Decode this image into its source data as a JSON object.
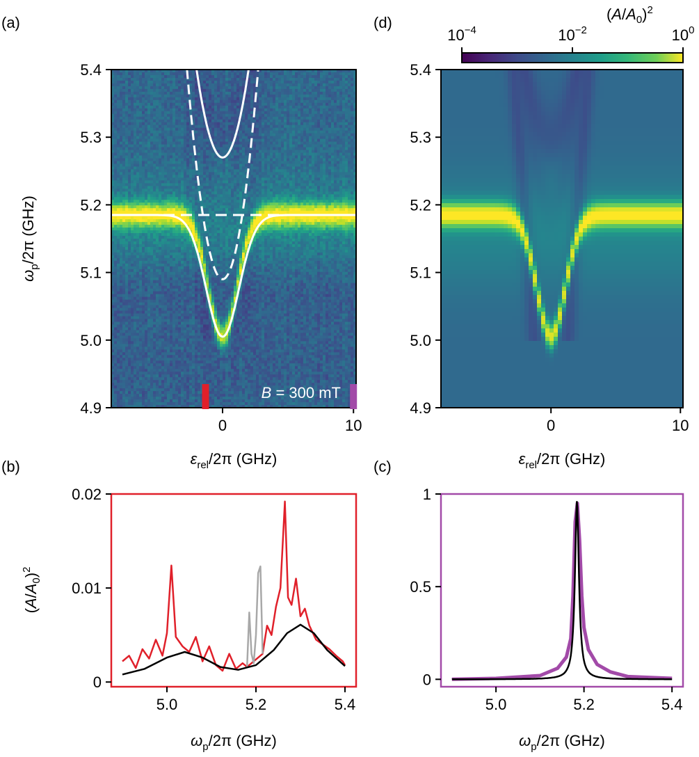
{
  "colors": {
    "panel_b_frame": "#e0202a",
    "panel_c_frame": "#a24aa8",
    "fit_line": "#000000",
    "excluded_data": "#a8a8a8",
    "overlay_lines": "#ffffff",
    "colormap": "viridis"
  },
  "chart_data": [
    {
      "panel": "(a)",
      "type": "heatmap",
      "title": "",
      "xlabel_parts": [
        "ε",
        "rel",
        "/2π (GHz)"
      ],
      "ylabel_parts": [
        "ω",
        "p",
        "/2π (GHz)"
      ],
      "xlim": [
        -8.5,
        10.2
      ],
      "ylim": [
        4.9,
        5.4
      ],
      "x_ticks": [
        0,
        10
      ],
      "y_ticks": [
        4.9,
        5.0,
        5.1,
        5.2,
        5.3,
        5.4
      ],
      "annotation": {
        "symbol": "B",
        "text": " = 300 mT"
      },
      "markers": [
        {
          "x": -1.3,
          "color": "#e0202a"
        },
        {
          "x": 10.0,
          "color": "#a24aa8"
        }
      ],
      "resonator_frequency": 5.185,
      "overlay_lines": [
        {
          "style": "solid",
          "shape": "dip",
          "min_y": 5.005,
          "at_x": 0
        },
        {
          "style": "dashed",
          "shape": "dip",
          "min_y": 5.09,
          "at_x": 0
        },
        {
          "style": "solid",
          "shape": "upper_branch",
          "min_y": 5.27,
          "at_x": 0
        },
        {
          "style": "dashed",
          "shape": "horizontal",
          "y": 5.185
        }
      ]
    },
    {
      "panel": "(d)",
      "type": "heatmap",
      "title": "",
      "xlabel_parts": [
        "ε",
        "rel",
        "/2π (GHz)"
      ],
      "xlim": [
        -8.5,
        10.2
      ],
      "ylim": [
        4.9,
        5.4
      ],
      "x_ticks": [
        0,
        10
      ],
      "y_ticks": [
        4.9,
        5.0,
        5.1,
        5.2,
        5.3,
        5.4
      ],
      "colorbar": {
        "label_parts": [
          "(",
          "A",
          "/",
          "A",
          "0",
          ")",
          "2"
        ],
        "scale": "log",
        "range": [
          0.0001,
          1
        ],
        "ticks": [
          {
            "base": "10",
            "exp": "−4"
          },
          {
            "base": "10",
            "exp": "−2"
          },
          {
            "base": "10",
            "exp": "0"
          }
        ]
      }
    },
    {
      "panel": "(b)",
      "type": "line",
      "title": "",
      "xlabel_parts": [
        "ω",
        "p",
        "/2π (GHz)"
      ],
      "ylabel_parts": [
        "(",
        "A",
        "/",
        "A",
        "0",
        ")",
        "2"
      ],
      "xlim": [
        4.875,
        5.425
      ],
      "ylim": [
        -0.0005,
        0.02
      ],
      "x_ticks": [
        "5.0",
        "5.2",
        "5.4"
      ],
      "y_ticks": [
        "0",
        "0.01",
        "0.02"
      ],
      "series": [
        {
          "role": "data",
          "color": "#e0202a",
          "x": [
            4.9,
            4.915,
            4.93,
            4.945,
            4.96,
            4.975,
            4.99,
            5.0,
            5.01,
            5.02,
            5.035,
            5.05,
            5.065,
            5.08,
            5.095,
            5.11,
            5.125,
            5.14,
            5.155,
            5.17,
            5.18,
            5.215,
            5.225,
            5.235,
            5.245,
            5.255,
            5.265,
            5.272,
            5.28,
            5.29,
            5.3,
            5.31,
            5.32,
            5.335,
            5.35,
            5.365,
            5.38,
            5.395,
            5.4
          ],
          "y": [
            0.0022,
            0.0028,
            0.0015,
            0.0035,
            0.0025,
            0.0045,
            0.0028,
            0.0052,
            0.0124,
            0.0048,
            0.0038,
            0.0032,
            0.0048,
            0.0022,
            0.0038,
            0.0018,
            0.0012,
            0.003,
            0.0014,
            0.002,
            0.0016,
            0.003,
            0.006,
            0.005,
            0.008,
            0.01,
            0.0192,
            0.009,
            0.0082,
            0.011,
            0.007,
            0.0078,
            0.006,
            0.0045,
            0.004,
            0.0035,
            0.0028,
            0.0022,
            0.0018
          ]
        },
        {
          "role": "excluded",
          "color": "#a8a8a8",
          "x": [
            5.18,
            5.185,
            5.19,
            5.195,
            5.2,
            5.205,
            5.21,
            5.215
          ],
          "y": [
            0.0016,
            0.0074,
            0.003,
            0.002,
            0.005,
            0.0116,
            0.0123,
            0.003
          ]
        },
        {
          "role": "fit",
          "color": "#000000",
          "x": [
            4.9,
            4.95,
            5.0,
            5.04,
            5.08,
            5.12,
            5.16,
            5.2,
            5.24,
            5.27,
            5.3,
            5.33,
            5.36,
            5.4
          ],
          "y": [
            0.0008,
            0.0014,
            0.0026,
            0.0032,
            0.0026,
            0.0016,
            0.0013,
            0.0018,
            0.0034,
            0.0052,
            0.0061,
            0.0052,
            0.0034,
            0.0017
          ]
        }
      ]
    },
    {
      "panel": "(c)",
      "type": "line",
      "title": "",
      "xlabel_parts": [
        "ω",
        "p",
        "/2π (GHz)"
      ],
      "xlim": [
        4.875,
        5.425
      ],
      "ylim": [
        -0.04,
        1.0
      ],
      "x_ticks": [
        "5.0",
        "5.2",
        "5.4"
      ],
      "y_ticks": [
        "0",
        "0.5",
        "1"
      ],
      "series": [
        {
          "role": "data",
          "color": "#a24aa8",
          "x": [
            4.9,
            5.0,
            5.1,
            5.14,
            5.16,
            5.17,
            5.175,
            5.18,
            5.185,
            5.19,
            5.195,
            5.2,
            5.21,
            5.23,
            5.26,
            5.3,
            5.4
          ],
          "y": [
            0.0,
            0.005,
            0.02,
            0.06,
            0.12,
            0.22,
            0.45,
            0.85,
            0.95,
            0.75,
            0.45,
            0.28,
            0.16,
            0.08,
            0.04,
            0.015,
            0.005
          ]
        },
        {
          "role": "fit",
          "color": "#000000",
          "center": 5.184,
          "halfwidth": 0.0055,
          "peak": 0.96,
          "offset": 0.0
        }
      ]
    }
  ]
}
